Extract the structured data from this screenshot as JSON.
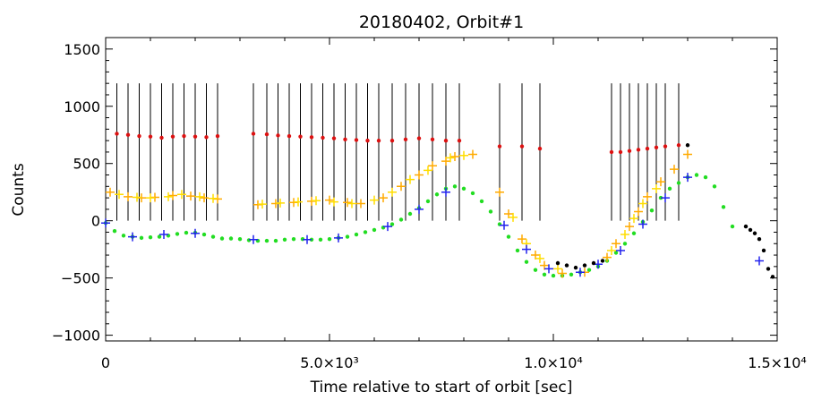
{
  "chart_data": {
    "type": "scatter",
    "title": "20180402, Orbit#1",
    "xlabel": "Time relative to start of orbit [sec]",
    "ylabel": "Counts",
    "xlim": [
      0,
      15000
    ],
    "ylim": [
      -1050,
      1600
    ],
    "xticks": [
      {
        "value": 0,
        "label": "0"
      },
      {
        "value": 5000,
        "label": "5.0×10³"
      },
      {
        "value": 10000,
        "label": "1.0×10⁴"
      },
      {
        "value": 15000,
        "label": "1.5×10⁴"
      }
    ],
    "yticks": [
      {
        "value": -1000,
        "label": "−1000"
      },
      {
        "value": -500,
        "label": "−500"
      },
      {
        "value": 0,
        "label": "0"
      },
      {
        "value": 500,
        "label": "500"
      },
      {
        "value": 1000,
        "label": "1000"
      },
      {
        "value": 1500,
        "label": "1500"
      }
    ],
    "grid": false,
    "colors": {
      "green": "#22dd22",
      "red": "#dd1111",
      "orange": "#ffaa00",
      "yellow": "#ffdd00",
      "blue": "#2222ee",
      "black": "#000000"
    },
    "vertical_lines": {
      "top": 1200,
      "bottom": 0,
      "x": [
        250,
        500,
        750,
        1000,
        1250,
        1500,
        1750,
        2000,
        2250,
        2500,
        3300,
        3600,
        3850,
        4100,
        4350,
        4600,
        4850,
        5100,
        5350,
        5600,
        5850,
        6100,
        6400,
        6700,
        7000,
        7300,
        7600,
        7900,
        8800,
        9300,
        9700,
        11300,
        11500,
        11700,
        11900,
        12100,
        12300,
        12500,
        12800
      ]
    },
    "series": [
      {
        "color": "green",
        "marker": "dot",
        "x": [
          0,
          200,
          400,
          600,
          800,
          1000,
          1200,
          1400,
          1600,
          1800,
          2000,
          2200,
          2400,
          2600,
          2800,
          3000,
          3200,
          3400,
          3600,
          3800,
          4000,
          4200,
          4400,
          4600,
          4800,
          5000,
          5200,
          5400,
          5600,
          5800,
          6000,
          6200,
          6400,
          6600,
          6800,
          7000,
          7200,
          7400,
          7600,
          7800,
          8000,
          8200,
          8400,
          8600,
          8800,
          9000,
          9200,
          9400,
          9600,
          9800,
          10000,
          10200,
          10400,
          10600,
          10800,
          11000,
          11200,
          11400,
          11600,
          11800,
          12000,
          12200,
          12400,
          12600,
          12800,
          13000,
          13200,
          13400,
          13600,
          13800,
          14000
        ],
        "y": [
          -20,
          -90,
          -130,
          -140,
          -150,
          -145,
          -140,
          -130,
          -115,
          -105,
          -105,
          -120,
          -140,
          -155,
          -155,
          -160,
          -170,
          -175,
          -175,
          -175,
          -165,
          -160,
          -160,
          -165,
          -165,
          -160,
          -150,
          -140,
          -120,
          -100,
          -80,
          -60,
          -30,
          10,
          60,
          110,
          170,
          230,
          280,
          300,
          280,
          240,
          170,
          80,
          -30,
          -140,
          -260,
          -360,
          -430,
          -470,
          -480,
          -480,
          -470,
          -450,
          -430,
          -400,
          -350,
          -280,
          -200,
          -110,
          -10,
          90,
          200,
          280,
          330,
          380,
          400,
          380,
          300,
          120,
          -50
        ]
      },
      {
        "color": "red",
        "marker": "dot",
        "x": [
          250,
          500,
          750,
          1000,
          1250,
          1500,
          1750,
          2000,
          2250,
          2500,
          3300,
          3600,
          3850,
          4100,
          4350,
          4600,
          4850,
          5100,
          5350,
          5600,
          5850,
          6100,
          6400,
          6700,
          7000,
          7300,
          7600,
          7900,
          8800,
          9300,
          9700,
          11300,
          11500,
          11700,
          11900,
          12100,
          12300,
          12500,
          12800
        ],
        "y": [
          760,
          750,
          740,
          735,
          725,
          735,
          740,
          735,
          730,
          740,
          760,
          755,
          745,
          740,
          735,
          730,
          725,
          720,
          710,
          705,
          700,
          700,
          700,
          710,
          720,
          710,
          700,
          700,
          650,
          650,
          630,
          600,
          600,
          610,
          620,
          630,
          640,
          650,
          660
        ]
      },
      {
        "color": "orange",
        "marker": "plus",
        "x": [
          100,
          500,
          800,
          1100,
          1500,
          1900,
          2200,
          2500,
          3400,
          3800,
          4200,
          4600,
          5000,
          5400,
          5700,
          6200,
          6600,
          7000,
          7300,
          7600,
          7800,
          8200,
          8800,
          9000,
          9300,
          9600,
          9800,
          10200,
          10700,
          11200,
          11400,
          11700,
          11900,
          12100,
          12400,
          12700,
          13000
        ],
        "y": [
          250,
          210,
          200,
          205,
          220,
          215,
          200,
          190,
          140,
          150,
          160,
          170,
          180,
          160,
          150,
          200,
          300,
          400,
          480,
          520,
          560,
          580,
          250,
          60,
          -160,
          -300,
          -390,
          -460,
          -450,
          -320,
          -200,
          -50,
          80,
          210,
          340,
          450,
          580
        ]
      },
      {
        "color": "yellow",
        "marker": "plus",
        "x": [
          300,
          700,
          1000,
          1400,
          1700,
          2100,
          2400,
          3500,
          3900,
          4300,
          4700,
          5100,
          5500,
          6000,
          6400,
          6800,
          7200,
          7700,
          8000,
          9100,
          9400,
          9700,
          10100,
          11300,
          11600,
          11800,
          12000,
          12300
        ],
        "y": [
          230,
          205,
          200,
          210,
          230,
          210,
          195,
          145,
          155,
          165,
          175,
          165,
          150,
          180,
          250,
          360,
          440,
          550,
          570,
          30,
          -200,
          -330,
          -420,
          -260,
          -120,
          20,
          150,
          280
        ]
      },
      {
        "color": "blue",
        "marker": "plus",
        "x": [
          0,
          600,
          1300,
          2000,
          3300,
          4500,
          5200,
          6300,
          7000,
          7600,
          8900,
          9400,
          9900,
          10600,
          11000,
          11500,
          12000,
          12500,
          13000,
          14600
        ],
        "y": [
          -20,
          -140,
          -120,
          -110,
          -165,
          -165,
          -150,
          -50,
          100,
          250,
          -40,
          -250,
          -420,
          -450,
          -380,
          -260,
          -30,
          200,
          380,
          -350
        ]
      },
      {
        "color": "black",
        "marker": "dot",
        "x": [
          10100,
          10300,
          10500,
          10700,
          10900,
          11100,
          13000,
          14300,
          14400,
          14500,
          14600,
          14700,
          14800,
          14900
        ],
        "y": [
          -370,
          -390,
          -410,
          -390,
          -370,
          -350,
          660,
          -50,
          -80,
          -110,
          -160,
          -260,
          -420,
          -490
        ]
      }
    ]
  }
}
